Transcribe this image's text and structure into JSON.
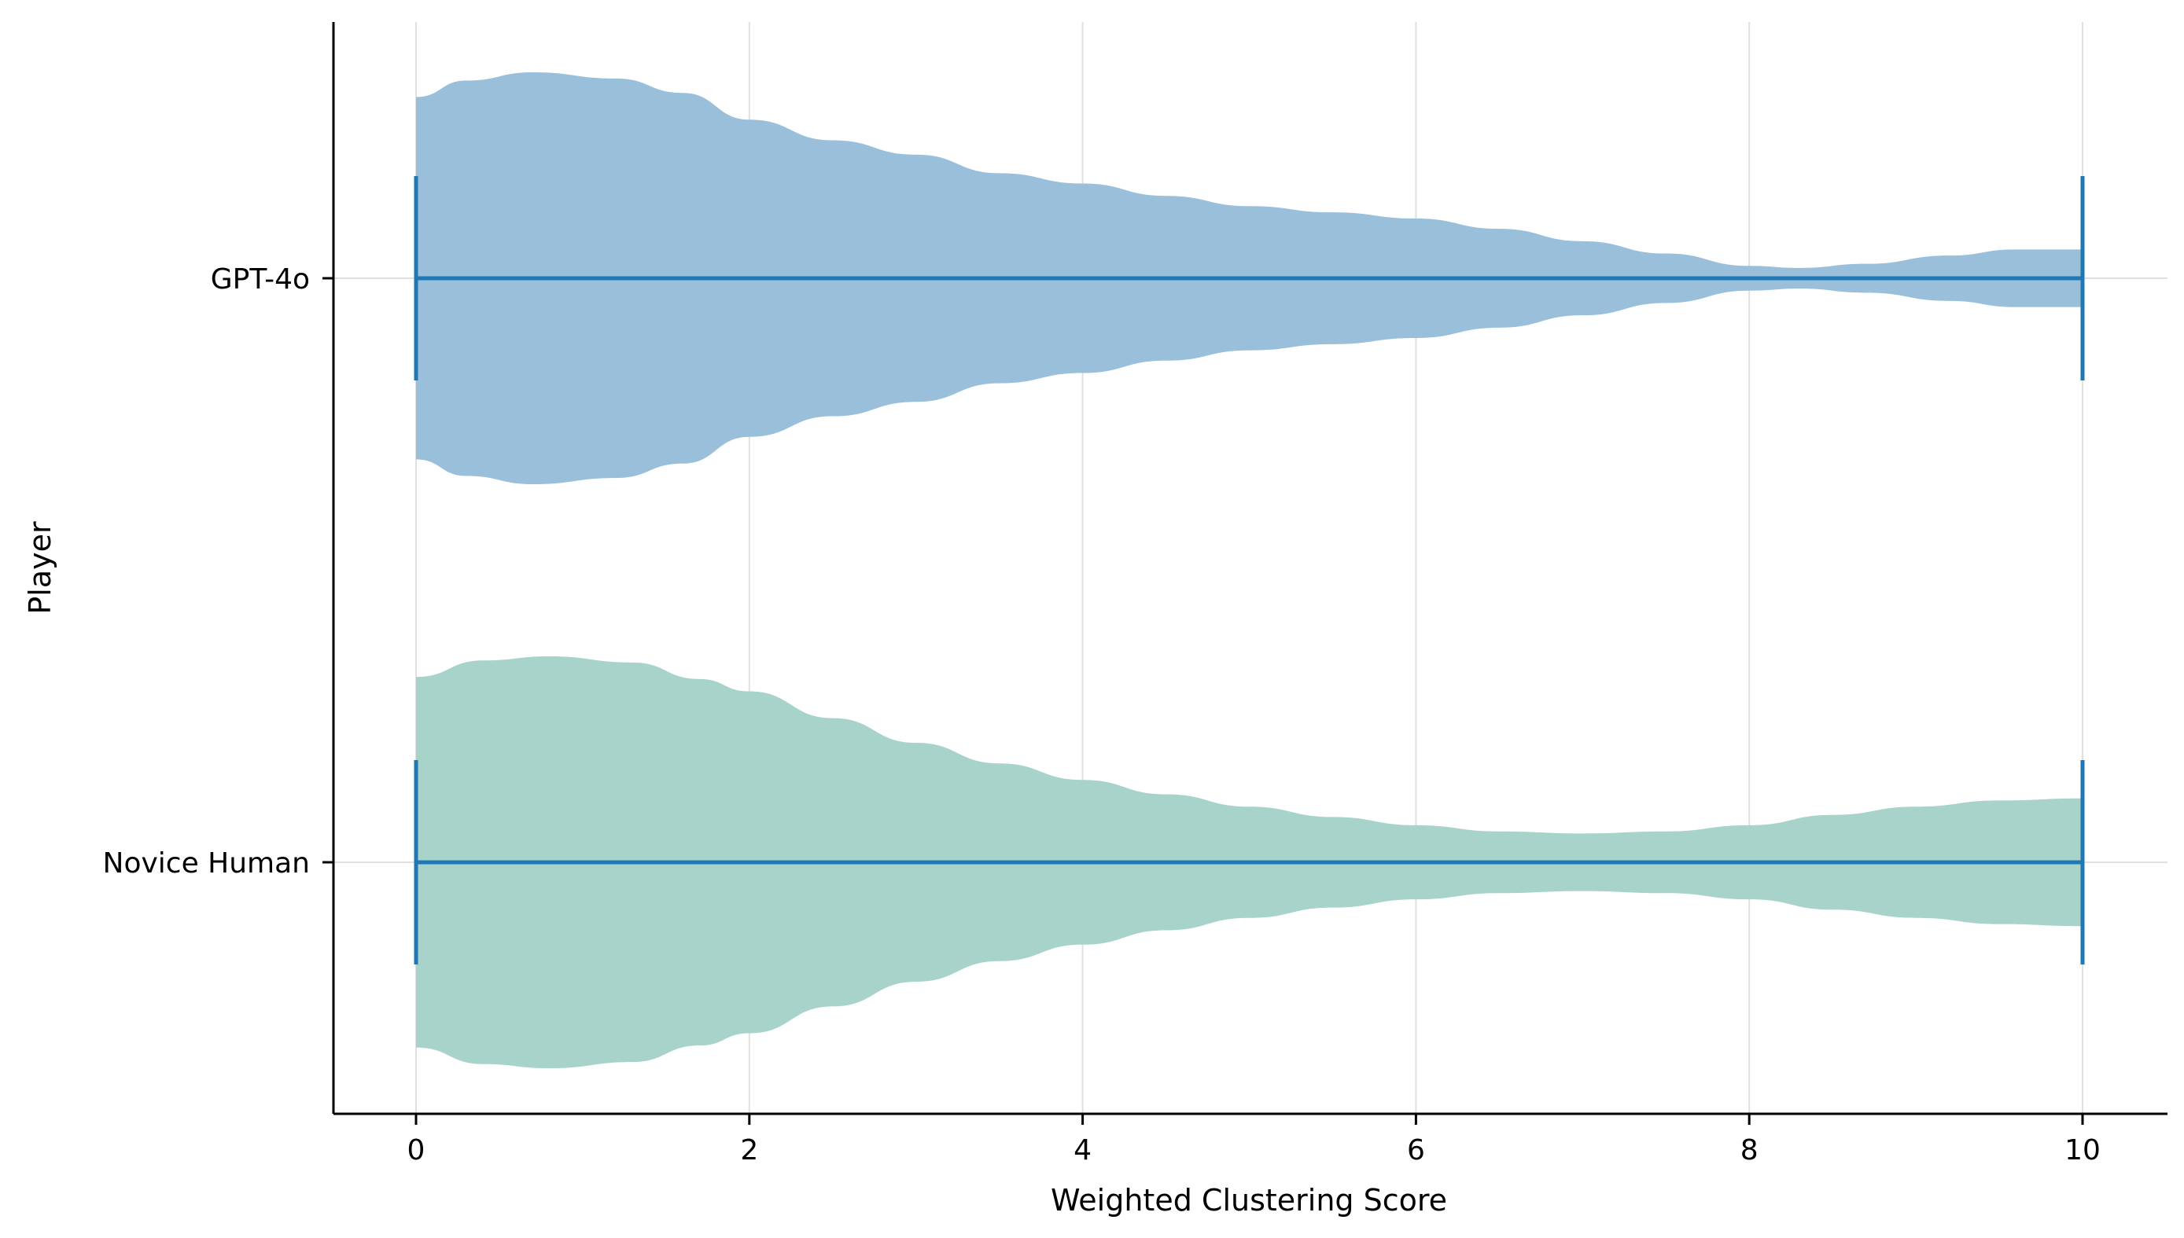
{
  "chart_data": {
    "type": "violin",
    "orientation": "horizontal",
    "xlabel": "Weighted Clustering Score",
    "ylabel": "Player",
    "xlim": [
      -0.5,
      10.5
    ],
    "xticks": [
      0,
      2,
      4,
      6,
      8,
      10
    ],
    "grid": true,
    "series": [
      {
        "name": "GPT-4o",
        "color": "#99bfdb",
        "min": 0,
        "max": 10,
        "median": null,
        "density": [
          [
            0,
            0.88
          ],
          [
            0.3,
            0.96
          ],
          [
            0.7,
            1.0
          ],
          [
            1.2,
            0.97
          ],
          [
            1.6,
            0.9
          ],
          [
            2.0,
            0.77
          ],
          [
            2.5,
            0.67
          ],
          [
            3.0,
            0.6
          ],
          [
            3.5,
            0.51
          ],
          [
            4.0,
            0.46
          ],
          [
            4.5,
            0.4
          ],
          [
            5.0,
            0.35
          ],
          [
            5.5,
            0.32
          ],
          [
            6.0,
            0.29
          ],
          [
            6.5,
            0.24
          ],
          [
            7.0,
            0.18
          ],
          [
            7.5,
            0.12
          ],
          [
            8.0,
            0.06
          ],
          [
            8.3,
            0.05
          ],
          [
            8.7,
            0.07
          ],
          [
            9.2,
            0.11
          ],
          [
            9.6,
            0.14
          ],
          [
            10.0,
            0.14
          ]
        ]
      },
      {
        "name": "Novice Human",
        "color": "#a7d3ca",
        "min": 0,
        "max": 10,
        "median": null,
        "density": [
          [
            0,
            0.9
          ],
          [
            0.4,
            0.98
          ],
          [
            0.8,
            1.0
          ],
          [
            1.3,
            0.97
          ],
          [
            1.7,
            0.89
          ],
          [
            2.0,
            0.83
          ],
          [
            2.5,
            0.7
          ],
          [
            3.0,
            0.58
          ],
          [
            3.5,
            0.48
          ],
          [
            4.0,
            0.4
          ],
          [
            4.5,
            0.33
          ],
          [
            5.0,
            0.27
          ],
          [
            5.5,
            0.22
          ],
          [
            6.0,
            0.18
          ],
          [
            6.5,
            0.15
          ],
          [
            7.0,
            0.14
          ],
          [
            7.5,
            0.15
          ],
          [
            8.0,
            0.18
          ],
          [
            8.5,
            0.23
          ],
          [
            9.0,
            0.27
          ],
          [
            9.5,
            0.3
          ],
          [
            10.0,
            0.31
          ]
        ]
      }
    ]
  }
}
